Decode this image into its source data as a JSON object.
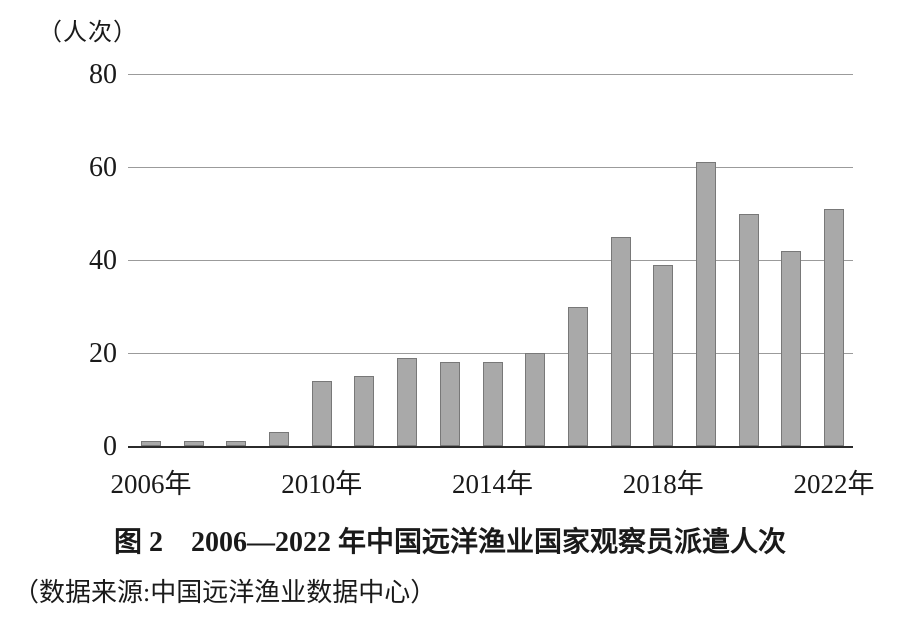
{
  "figure": {
    "unit_label": "（人次）",
    "title": "图 2　2006—2022 年中国远洋渔业国家观察员派遣人次",
    "source": "（数据来源:中国远洋渔业数据中心）"
  },
  "chart_data": {
    "type": "bar",
    "categories": [
      "2006",
      "2007",
      "2008",
      "2009",
      "2010",
      "2011",
      "2012",
      "2013",
      "2014",
      "2015",
      "2016",
      "2017",
      "2018",
      "2019",
      "2020",
      "2021",
      "2022"
    ],
    "values": [
      1,
      1,
      1,
      3,
      14,
      15,
      19,
      18,
      18,
      20,
      30,
      45,
      39,
      61,
      50,
      42,
      51
    ],
    "title": "图 2　2006—2022 年中国远洋渔业国家观察员派遣人次",
    "xlabel": "",
    "ylabel": "（人次）",
    "ylim": [
      0,
      80
    ],
    "y_ticks": [
      0,
      20,
      40,
      60,
      80
    ],
    "x_tick_labels": [
      {
        "index": 0,
        "label": "2006年"
      },
      {
        "index": 4,
        "label": "2010年"
      },
      {
        "index": 8,
        "label": "2014年"
      },
      {
        "index": 12,
        "label": "2018年"
      },
      {
        "index": 16,
        "label": "2022年"
      }
    ],
    "grid": "horizontal",
    "legend": "none",
    "bar_color": "#a9a9a9",
    "bar_border_color": "#787878",
    "gridline_color": "#9b9b9b",
    "axis_color": "#2b2b2b",
    "source_note": "（数据来源:中国远洋渔业数据中心）"
  }
}
